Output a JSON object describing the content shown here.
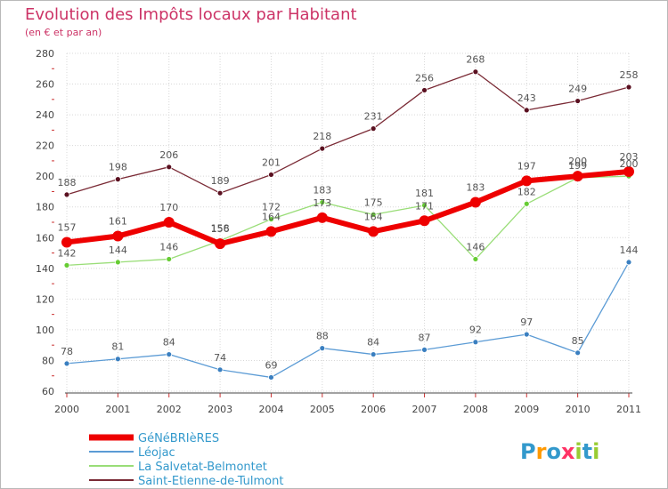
{
  "chart_data": {
    "type": "line",
    "title": "Evolution des Impôts locaux par Habitant",
    "subtitle": "(en € et par an)",
    "xlabel": "",
    "ylabel": "",
    "ylim": [
      60,
      280
    ],
    "yticks": [
      60,
      80,
      100,
      120,
      140,
      160,
      180,
      200,
      220,
      240,
      260,
      280
    ],
    "grid": true,
    "legend_position": "bottom-left",
    "x": [
      "2000",
      "2001",
      "2002",
      "2003",
      "2004",
      "2005",
      "2006",
      "2007",
      "2008",
      "2009",
      "2010",
      "2011"
    ],
    "series": [
      {
        "name": "Saint-Etienne-de-Tulmont",
        "color": "#7a2a35",
        "point_color": "#5a1020",
        "width": 1.3,
        "radius": 3,
        "values": [
          188,
          198,
          206,
          189,
          201,
          218,
          231,
          256,
          268,
          243,
          249,
          258
        ],
        "labels": [
          "188",
          "198",
          "206",
          "189",
          "201",
          "218",
          "231",
          "256",
          "268",
          "243",
          "249",
          "258"
        ]
      },
      {
        "name": "Léojac",
        "color": "#5b9bd5",
        "point_color": "#3a7fc0",
        "width": 1.3,
        "radius": 3,
        "values": [
          78,
          81,
          84,
          74,
          69,
          88,
          84,
          87,
          92,
          97,
          85,
          144
        ],
        "labels": [
          "78",
          "81",
          "84",
          "74",
          "69",
          "88",
          "84",
          "87",
          "92",
          "97",
          "85",
          "144"
        ]
      },
      {
        "name": "La Salvetat-Belmontet",
        "color": "#99dd77",
        "point_color": "#66cc33",
        "width": 1.3,
        "radius": 3,
        "values": [
          142,
          144,
          146,
          158,
          172,
          183,
          175,
          181,
          146,
          182,
          199,
          200
        ],
        "labels": [
          "142",
          "144",
          "146",
          "158",
          "172",
          "183",
          "175",
          "181",
          "146",
          "182",
          "199",
          "200"
        ]
      },
      {
        "name": "GéNéBRIèRES",
        "color": "#ee0000",
        "point_color": "#ee0000",
        "width": 6,
        "radius": 6,
        "values": [
          157,
          161,
          170,
          156,
          164,
          173,
          164,
          171,
          183,
          197,
          200,
          203
        ],
        "labels": [
          "157",
          "161",
          "170",
          "156",
          "164",
          "173",
          "164",
          "171",
          "183",
          "197",
          "200",
          "203"
        ]
      }
    ],
    "legend": [
      {
        "name": "GéNéBRIèRES",
        "color": "#ee0000",
        "thick": true
      },
      {
        "name": "Léojac",
        "color": "#5b9bd5",
        "thick": false
      },
      {
        "name": "La Salvetat-Belmontet",
        "color": "#99dd77",
        "thick": false
      },
      {
        "name": "Saint-Etienne-de-Tulmont",
        "color": "#7a2a35",
        "thick": false
      }
    ]
  },
  "logo": {
    "letters": [
      {
        "ch": "P",
        "color": "#3399cc"
      },
      {
        "ch": "r",
        "color": "#ff9900"
      },
      {
        "ch": "o",
        "color": "#3399cc"
      },
      {
        "ch": "x",
        "color": "#ff3366"
      },
      {
        "ch": "i",
        "color": "#99cc33"
      },
      {
        "ch": "t",
        "color": "#3399cc"
      },
      {
        "ch": "i",
        "color": "#99cc33"
      }
    ]
  }
}
